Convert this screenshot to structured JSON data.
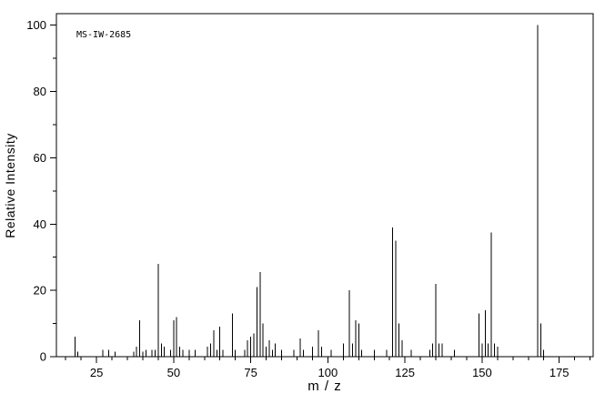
{
  "colors": {
    "line": "#000000",
    "background": "#ffffff"
  },
  "chart_data": {
    "type": "bar",
    "title": "MS-IW-2685",
    "xlabel": "m / z",
    "ylabel": "Relative Intensity",
    "xlim": [
      12,
      186
    ],
    "ylim": [
      0,
      103.5
    ],
    "x_major_ticks": [
      25,
      50,
      75,
      100,
      125,
      150,
      175
    ],
    "x_minor_step": 5,
    "y_major_ticks": [
      0,
      20,
      40,
      60,
      80,
      100
    ],
    "y_minor_step": 10,
    "grid": false,
    "legend": false,
    "series_name": "mass spectrum relative intensity peaks",
    "peaks": [
      [
        18,
        6
      ],
      [
        19,
        1.5
      ],
      [
        27,
        2
      ],
      [
        29,
        2
      ],
      [
        31,
        1.5
      ],
      [
        37,
        1.5
      ],
      [
        38,
        3
      ],
      [
        39,
        11
      ],
      [
        40,
        1.5
      ],
      [
        41,
        2
      ],
      [
        43,
        2
      ],
      [
        44,
        2
      ],
      [
        45,
        28
      ],
      [
        46,
        4
      ],
      [
        47,
        3
      ],
      [
        49,
        2
      ],
      [
        50,
        11
      ],
      [
        51,
        12
      ],
      [
        52,
        3
      ],
      [
        53,
        2
      ],
      [
        55,
        2
      ],
      [
        57,
        2
      ],
      [
        61,
        3
      ],
      [
        62,
        4
      ],
      [
        63,
        8
      ],
      [
        64,
        2
      ],
      [
        65,
        9
      ],
      [
        66,
        2
      ],
      [
        69,
        13
      ],
      [
        70,
        2
      ],
      [
        73,
        2
      ],
      [
        74,
        5
      ],
      [
        75,
        6
      ],
      [
        76,
        7
      ],
      [
        77,
        21
      ],
      [
        78,
        25.5
      ],
      [
        79,
        10
      ],
      [
        80,
        3
      ],
      [
        81,
        5
      ],
      [
        82,
        2
      ],
      [
        83,
        4
      ],
      [
        85,
        2
      ],
      [
        89,
        2
      ],
      [
        91,
        5.5
      ],
      [
        92,
        2
      ],
      [
        95,
        3
      ],
      [
        97,
        8
      ],
      [
        98,
        3
      ],
      [
        101,
        2
      ],
      [
        105,
        4
      ],
      [
        107,
        20
      ],
      [
        108,
        4
      ],
      [
        109,
        11
      ],
      [
        110,
        10
      ],
      [
        111,
        2
      ],
      [
        115,
        2
      ],
      [
        119,
        2
      ],
      [
        121,
        39
      ],
      [
        122,
        35
      ],
      [
        123,
        10
      ],
      [
        124,
        5
      ],
      [
        127,
        2
      ],
      [
        133,
        2
      ],
      [
        134,
        4
      ],
      [
        135,
        22
      ],
      [
        136,
        4
      ],
      [
        137,
        4
      ],
      [
        141,
        2
      ],
      [
        149,
        13
      ],
      [
        150,
        4
      ],
      [
        151,
        14
      ],
      [
        152,
        4
      ],
      [
        153,
        37.5
      ],
      [
        154,
        4
      ],
      [
        155,
        3
      ],
      [
        168,
        100
      ],
      [
        169,
        10
      ],
      [
        170,
        2
      ]
    ]
  }
}
